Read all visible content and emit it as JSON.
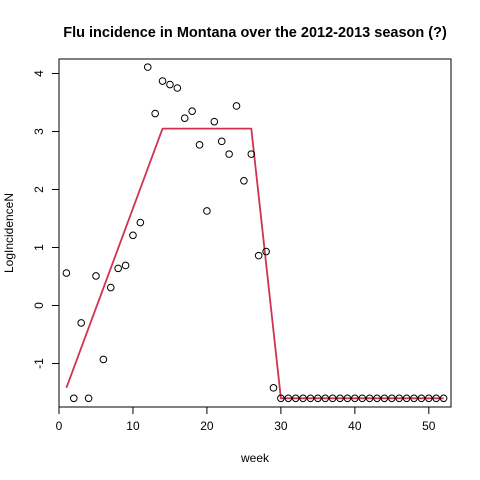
{
  "chart_data": {
    "type": "scatter",
    "title": "Flu incidence in Montana over the 2012-2013 season (?)",
    "xlabel": "week",
    "ylabel": "LogIncidenceN",
    "xlim": [
      0,
      53
    ],
    "ylim": [
      -1.75,
      4.25
    ],
    "x_ticks": [
      0,
      10,
      20,
      30,
      40,
      50
    ],
    "y_ticks": [
      -1,
      0,
      1,
      2,
      3,
      4
    ],
    "grid": false,
    "legend": "none",
    "colors": {
      "points": "#000000",
      "fit_line": "#d0334f",
      "axis": "#000000"
    },
    "series": [
      {
        "type": "scatter",
        "marker": "open-circle",
        "x": [
          1,
          2,
          3,
          4,
          5,
          6,
          7,
          8,
          9,
          10,
          11,
          12,
          13,
          14,
          15,
          16,
          17,
          18,
          19,
          20,
          21,
          22,
          23,
          24,
          25,
          26,
          27,
          28,
          29,
          30,
          31,
          32,
          33,
          34,
          35,
          36,
          37,
          38,
          39,
          40,
          41,
          42,
          43,
          44,
          45,
          46,
          47,
          48,
          49,
          50,
          51,
          52
        ],
        "y": [
          0.56,
          -1.6,
          -0.3,
          -1.6,
          0.51,
          -0.93,
          0.31,
          0.64,
          0.69,
          1.21,
          1.43,
          4.11,
          3.31,
          3.87,
          3.81,
          3.75,
          3.23,
          3.35,
          2.77,
          1.63,
          3.17,
          2.83,
          2.61,
          3.44,
          2.15,
          2.61,
          0.86,
          0.93,
          -1.42,
          -1.6,
          -1.6,
          -1.6,
          -1.6,
          -1.6,
          -1.6,
          -1.6,
          -1.6,
          -1.6,
          -1.6,
          -1.6,
          -1.6,
          -1.6,
          -1.6,
          -1.6,
          -1.6,
          -1.6,
          -1.6,
          -1.6,
          -1.6,
          -1.6,
          -1.6,
          -1.6
        ]
      },
      {
        "type": "line",
        "x": [
          1,
          14,
          26,
          30,
          52
        ],
        "y": [
          -1.42,
          3.05,
          3.05,
          -1.6,
          -1.6
        ]
      }
    ]
  }
}
